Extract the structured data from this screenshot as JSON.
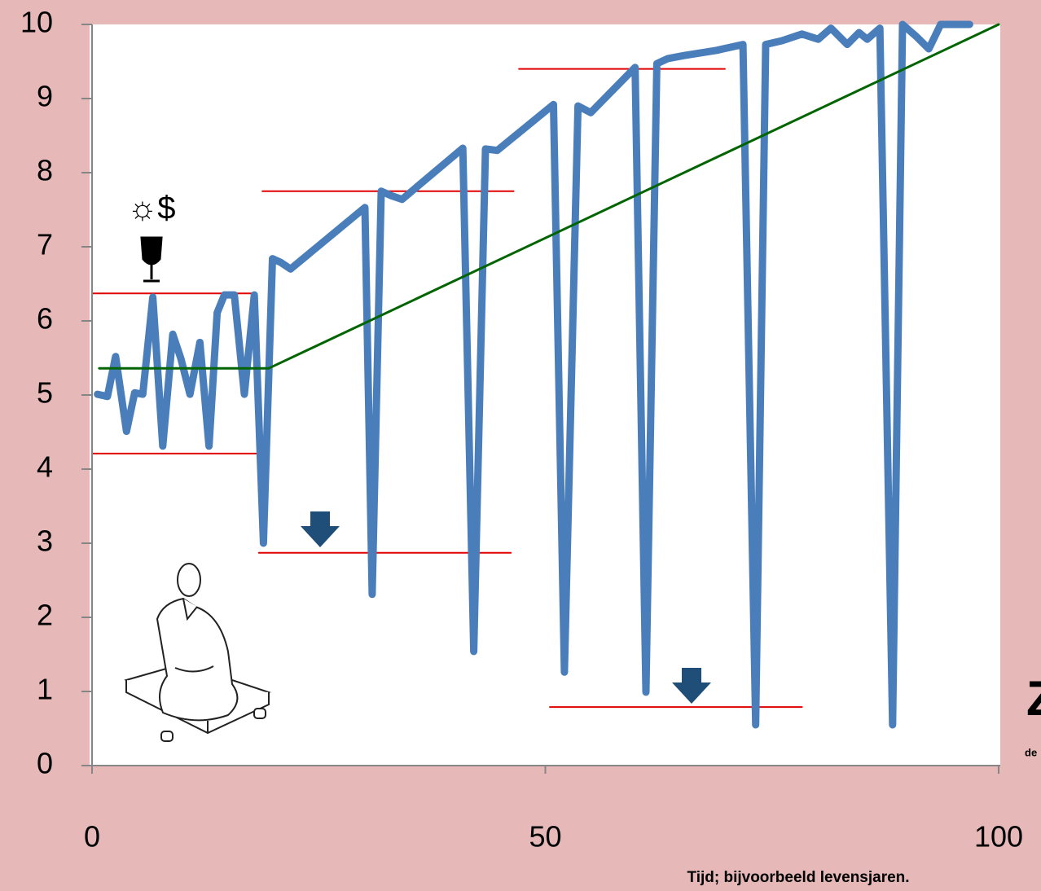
{
  "chart_data": {
    "type": "line",
    "xlim": [
      0,
      100
    ],
    "ylim": [
      0,
      10
    ],
    "xticks": [
      0,
      50,
      100
    ],
    "yticks": [
      0,
      1,
      2,
      3,
      4,
      5,
      6,
      7,
      8,
      9,
      10
    ],
    "xlabel": "Tijd; bijvoorbeeld levensjaren.",
    "annotation": "☼$",
    "logo_text": "Z",
    "logo_subtext": "de",
    "series": [
      {
        "color": "#4a7ebb",
        "x": [
          0.6,
          1.7,
          2.6,
          3.8,
          4.7,
          5.6,
          6.7,
          7.8,
          8.9,
          9.8,
          10.8,
          11.9,
          12.9,
          13.8,
          14.6,
          15.7,
          16.8,
          17.9,
          18.9,
          19.9,
          20.8,
          21.9,
          30.1,
          30.9,
          31.9,
          33.0,
          34.2,
          40.9,
          42.1,
          43.4,
          44.7,
          50.9,
          52.1,
          53.6,
          55.0,
          59.9,
          61.1,
          62.3,
          63.5,
          65.3,
          68.9,
          71.8,
          73.2,
          74.3,
          76.1,
          78.3,
          80.1,
          81.5,
          83.3,
          84.6,
          85.5,
          86.9,
          88.3,
          89.4,
          90.9,
          92.3,
          93.6,
          95.0,
          96.8
        ],
        "values": [
          5.01,
          4.98,
          5.52,
          4.51,
          5.03,
          5.01,
          6.32,
          4.31,
          5.82,
          5.49,
          5.01,
          5.71,
          4.31,
          6.11,
          6.35,
          6.35,
          5.01,
          6.35,
          3.0,
          6.84,
          6.79,
          6.7,
          7.53,
          2.31,
          7.75,
          7.69,
          7.64,
          8.33,
          1.54,
          8.32,
          8.3,
          8.92,
          1.26,
          8.9,
          8.81,
          9.42,
          0.99,
          9.47,
          9.54,
          9.58,
          9.65,
          9.73,
          0.55,
          9.73,
          9.78,
          9.87,
          9.8,
          9.95,
          9.73,
          9.89,
          9.8,
          9.95,
          0.55,
          10,
          9.84,
          9.67,
          10,
          10,
          10
        ]
      }
    ],
    "trend": {
      "color": "#006400",
      "x": [
        0.8,
        19.5,
        100
      ],
      "values": [
        5.36,
        5.36,
        10
      ]
    },
    "reference_lines": [
      {
        "color": "#e00000",
        "x": [
          0,
          18.1
        ],
        "values": [
          6.37,
          6.37
        ]
      },
      {
        "color": "#e00000",
        "x": [
          0,
          18.1
        ],
        "values": [
          4.21,
          4.21
        ]
      },
      {
        "color": "#e00000",
        "x": [
          18.8,
          46.5
        ],
        "values": [
          7.75,
          7.75
        ]
      },
      {
        "color": "#e00000",
        "x": [
          47.1,
          69.8
        ],
        "values": [
          9.4,
          9.4
        ]
      },
      {
        "color": "#e00000",
        "x": [
          18.4,
          46.2
        ],
        "values": [
          2.87,
          2.87
        ]
      },
      {
        "color": "#e00000",
        "x": [
          50.5,
          78.3
        ],
        "values": [
          0.79,
          0.79
        ]
      }
    ]
  }
}
